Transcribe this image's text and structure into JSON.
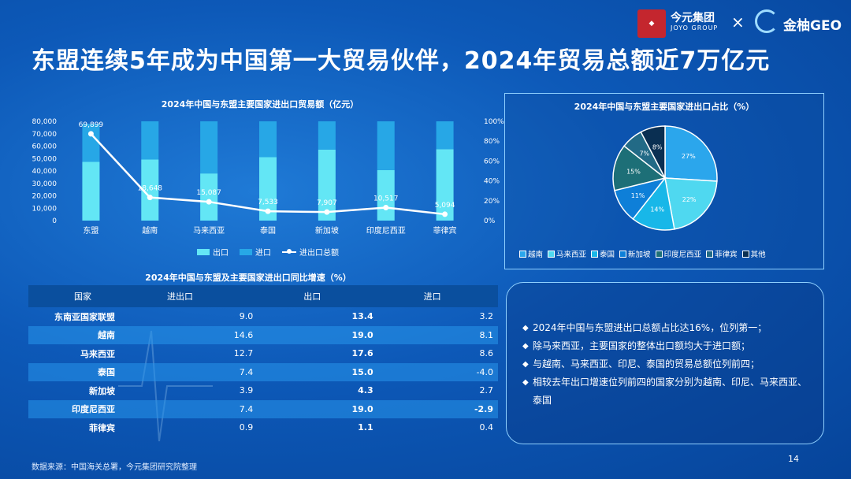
{
  "header": {
    "title": "东盟连续5年成为中国第一大贸易伙伴，2024年贸易总额近7万亿元",
    "brand1_name": "今元集团",
    "brand1_sub": "JOYO GROUP",
    "brand_x": "×",
    "brand2_name": "金柚GEO"
  },
  "chart_data": [
    {
      "type": "bar",
      "title": "2024年中国与东盟主要国家进出口贸易额（亿元）",
      "categories": [
        "东盟",
        "越南",
        "马来西亚",
        "泰国",
        "新加坡",
        "印度尼西亚",
        "菲律宾"
      ],
      "series": [
        {
          "name": "出口",
          "kind": "bar",
          "axis": "left",
          "values": [
            47300,
            49200,
            38000,
            51100,
            57200,
            40700,
            57600
          ]
        },
        {
          "name": "进口",
          "kind": "bar",
          "axis": "left",
          "values": [
            30700,
            30800,
            42000,
            28900,
            22800,
            39300,
            22400
          ]
        },
        {
          "name": "进出口总额",
          "kind": "line",
          "axis": "right",
          "values": [
            87.4,
            23.3,
            18.9,
            9.4,
            8.6,
            13.1,
            6.4
          ],
          "data_labels": [
            "69,899",
            "18,648",
            "15,087",
            "7,533",
            "7,907",
            "10,517",
            "5,094"
          ]
        }
      ],
      "ylim_left": [
        0,
        80000
      ],
      "yticks_left": [
        "0",
        "10,000",
        "20,000",
        "30,000",
        "40,000",
        "50,000",
        "60,000",
        "70,000",
        "80,000"
      ],
      "ylim_right": [
        0,
        100
      ],
      "yticks_right": [
        "0%",
        "20%",
        "40%",
        "60%",
        "80%",
        "100%"
      ],
      "colors": {
        "出口": "#63e6f5",
        "进口": "#27a7e6",
        "进出口总额": "#ffffff"
      },
      "legend": "bottom",
      "grid": false
    },
    {
      "type": "pie",
      "title": "2024年中国与东盟主要国家进出口占比（%）",
      "slices": [
        {
          "name": "越南",
          "value": 27,
          "label": "27%",
          "color": "#2ba6ec"
        },
        {
          "name": "马来西亚",
          "value": 22,
          "label": "22%",
          "color": "#4fd8f0"
        },
        {
          "name": "泰国",
          "value": 14,
          "label": "14%",
          "color": "#18b7e8"
        },
        {
          "name": "新加坡",
          "value": 11,
          "label": "11%",
          "color": "#0e7fd8"
        },
        {
          "name": "印度尼西亚",
          "value": 15,
          "label": "15%",
          "color": "#1d6f77"
        },
        {
          "name": "菲律宾",
          "value": 7,
          "label": "7%",
          "color": "#226a86"
        },
        {
          "name": "其他",
          "value": 8,
          "label": "8%",
          "color": "#0a2f52"
        }
      ],
      "legend": "bottom"
    },
    {
      "type": "table",
      "title": "2024年中国与东盟及主要国家进出口同比增速（%）",
      "columns": [
        "国家",
        "进出口",
        "出口",
        "进口"
      ],
      "rows": [
        [
          "东南亚国家联盟",
          "9.0",
          "13.4",
          "3.2"
        ],
        [
          "越南",
          "14.6",
          "19.0",
          "8.1"
        ],
        [
          "马来西亚",
          "12.7",
          "17.6",
          "8.6"
        ],
        [
          "泰国",
          "7.4",
          "15.0",
          "-4.0"
        ],
        [
          "新加坡",
          "3.9",
          "4.3",
          "2.7"
        ],
        [
          "印度尼西亚",
          "7.4",
          "19.0",
          "-2.9"
        ],
        [
          "菲律宾",
          "0.9",
          "1.1",
          "0.4"
        ]
      ]
    }
  ],
  "notes": [
    "2024年中国与东盟进出口总额占比达16%，位列第一；",
    "除马来西亚，主要国家的整体出口额均大于进口额；",
    "与越南、马来西亚、印尼、泰国的贸易总额位列前四；",
    "相较去年出口增速位列前四的国家分别为越南、印尼、马来西亚、泰国"
  ],
  "footer": {
    "source": "数据来源：中国海关总署，今元集团研究院整理",
    "page": "14"
  }
}
